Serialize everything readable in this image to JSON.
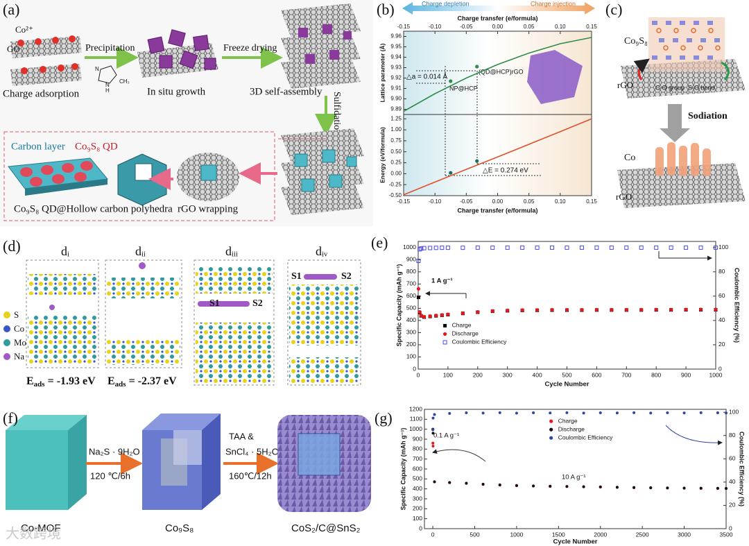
{
  "panels": {
    "a": {
      "label": "(a)",
      "ion": "Co²⁺",
      "go": "GO",
      "step1": "Charge adsorption",
      "arrow1": "Precipitation",
      "step2": "In situ growth",
      "arrow2": "Freeze drying",
      "step3": "3D self-assembly",
      "arrow3": "Sulfidation",
      "carbon_layer": "Carbon layer",
      "qd": "Co₉S₈ QD",
      "final": "Co₉S₈ QD@Hollow carbon polyhedra",
      "arrow4": "rGO wrapping",
      "imidazole": [
        "N",
        "N",
        "H",
        "CH₃"
      ]
    },
    "b": {
      "label": "(b)",
      "depletion": "Charge depletion",
      "injection": "Charge injection",
      "delta_a": "△a = 0.014 Å",
      "np": "NP@HCP",
      "qd": "(QD@HCP)rGO",
      "delta_e": "△E = 0.274 eV"
    },
    "c": {
      "label": "(c)",
      "top": "Co₉S₈",
      "rgo": "rGO",
      "co_group": "C-O group",
      "so_bond": "S-O bond",
      "arrow": "Sodiation",
      "bottom": "Co",
      "rgo2": "rGO"
    },
    "d": {
      "label": "(d)",
      "sub": [
        "dᵢ",
        "dᵢᵢ",
        "dᵢᵢᵢ",
        "dᵢᵥ"
      ],
      "legend": [
        "S",
        "Co",
        "Mo",
        "Na"
      ],
      "eads_symbol": "E",
      "eads_sub": "ads",
      "energies": [
        "= -1.93 eV",
        "= -2.37 eV"
      ],
      "sites": [
        "S1",
        "S2"
      ]
    },
    "e": {
      "label": "(e)"
    },
    "f": {
      "label": "(f)",
      "start": "Co-MOF",
      "reagent1": "Na₂S · 9H₂O",
      "cond1": "120 ℃/6h",
      "reagent2a": "TAA &",
      "reagent2b": "SnCl₄ · 5H₂O",
      "cond2": "160℃/12h",
      "mid": "Co₉S₈",
      "end": "CoS₂/C@SnS₂"
    },
    "g": {
      "label": "(g)"
    },
    "watermark": "大数跨境"
  },
  "chart_data": [
    {
      "type": "line",
      "xlabel": "Charge transfer (e/formula)",
      "ylabel": "Lattice parameter (Å)",
      "x": [
        -0.15,
        -0.1,
        -0.05,
        0,
        0.05,
        0.1,
        0.15
      ],
      "xlim": [
        -0.15,
        0.15
      ],
      "xticks": [
        {
          "value": -0.15,
          "label": "-0.15"
        },
        {
          "value": -0.1,
          "label": "-0.10"
        },
        {
          "value": -0.05,
          "label": "-0.05"
        },
        {
          "value": 0,
          "label": "0.00"
        },
        {
          "value": 0.05,
          "label": "0.05"
        },
        {
          "value": 0.1,
          "label": "0.10"
        },
        {
          "value": 0.15,
          "label": "0.15"
        }
      ],
      "ylim": [
        9.885,
        9.965
      ],
      "yticks": [
        9.89,
        {
          "value": 9.9,
          "label": "9.90"
        },
        9.91,
        9.92,
        9.93,
        9.94,
        9.95,
        9.96
      ],
      "series": [
        {
          "color": "#2e8b4a",
          "mode": "line",
          "values": [
            9.888,
            9.905,
            9.92,
            9.933,
            9.944,
            9.953,
            9.959
          ]
        },
        {
          "color": "#2e8b4a",
          "mode": "circle",
          "x": [
            -0.075,
            -0.033
          ],
          "values": [
            9.917,
            9.931
          ]
        }
      ]
    },
    {
      "type": "line",
      "xlabel": "Charge transfer (e/formula)",
      "ylabel": "Energy (eV/formula)",
      "x": [
        -0.15,
        -0.1,
        -0.05,
        0,
        0.05,
        0.1,
        0.15
      ],
      "xlim": [
        -0.15,
        0.15
      ],
      "xticks": [
        {
          "value": -0.15,
          "label": "-0.15"
        },
        {
          "value": -0.1,
          "label": "-0.10"
        },
        {
          "value": -0.05,
          "label": "-0.05"
        },
        {
          "value": 0,
          "label": "0.00"
        },
        {
          "value": 0.05,
          "label": "0.05"
        },
        {
          "value": 0.1,
          "label": "0.10"
        },
        {
          "value": 0.15,
          "label": "0.15"
        }
      ],
      "ylim": [
        -0.5,
        1.35
      ],
      "yticks": [
        {
          "value": -0.5,
          "label": "-0.50"
        },
        -0.25,
        {
          "value": 0,
          "label": "0.00"
        },
        0.25,
        {
          "value": 0.5,
          "label": "0.50"
        },
        0.75,
        {
          "value": 1,
          "label": "1.00"
        },
        1.25
      ],
      "series": [
        {
          "color": "#e0502a",
          "mode": "line",
          "values": [
            -0.48,
            -0.19,
            0.1,
            0.38,
            0.67,
            0.96,
            1.25
          ]
        },
        {
          "color": "#1f6e5a",
          "mode": "circle",
          "x": [
            -0.075,
            -0.033
          ],
          "values": [
            0.02,
            0.29
          ]
        }
      ]
    },
    {
      "type": "scatter",
      "xlabel": "Cycle Number",
      "ylabel": "Specific Capacity   (mAh g⁻¹)",
      "y2label": "Coulombic Efficiency (%)",
      "annotations": [
        "1 A g⁻¹"
      ],
      "legend": "center-left",
      "x": [
        1,
        5,
        10,
        20,
        40,
        60,
        80,
        100,
        150,
        200,
        250,
        300,
        350,
        400,
        450,
        500,
        550,
        600,
        650,
        700,
        750,
        800,
        850,
        900,
        950,
        1000
      ],
      "xlim": [
        0,
        1000
      ],
      "xticks": [
        0,
        100,
        200,
        300,
        400,
        500,
        600,
        700,
        800,
        900,
        1000
      ],
      "ylim": [
        0,
        1050
      ],
      "yticks": [
        0,
        100,
        200,
        300,
        400,
        500,
        600,
        700,
        800,
        900,
        1000
      ],
      "y2lim": [
        0,
        105
      ],
      "y2ticks": [
        0,
        20,
        40,
        60,
        80,
        100
      ],
      "series": [
        {
          "name": "Charge",
          "color": "#000000",
          "mode": "square",
          "values": [
            590,
            465,
            438,
            428,
            433,
            438,
            443,
            448,
            458,
            468,
            476,
            480,
            483,
            484,
            485,
            485,
            485,
            486,
            486,
            486,
            486,
            487,
            487,
            488,
            488,
            488
          ]
        },
        {
          "name": "Discharge",
          "color": "#e8161b",
          "mode": "circle",
          "values": [
            660,
            470,
            440,
            430,
            435,
            440,
            445,
            450,
            460,
            470,
            478,
            482,
            485,
            486,
            487,
            487,
            487,
            488,
            488,
            488,
            488,
            489,
            489,
            490,
            490,
            490
          ]
        },
        {
          "name": "Coulombic Efficiency",
          "color": "#4a4ae8",
          "mode": "open-square",
          "axis": "y2",
          "values": [
            89,
            98.5,
            99.2,
            99.5,
            99.6,
            99.7,
            99.8,
            99.8,
            99.8,
            99.9,
            99.9,
            99.9,
            99.9,
            99.9,
            99.9,
            99.9,
            99.9,
            99.9,
            99.9,
            99.9,
            99.9,
            99.9,
            99.9,
            99.9,
            99.9,
            99.9
          ]
        }
      ]
    },
    {
      "type": "scatter",
      "xlabel": "Cycle Number",
      "ylabel": "Specific Capacity (mAh g⁻¹)",
      "y2label": "Coulombic Efficiency (%)",
      "annotations": [
        "0.1 A g⁻¹",
        "10 A g⁻¹"
      ],
      "legend": "upper-center",
      "x": [
        1,
        3,
        20,
        200,
        400,
        600,
        800,
        1000,
        1200,
        1400,
        1600,
        1800,
        2000,
        2200,
        2400,
        2600,
        2800,
        3000,
        3200,
        3400,
        3500
      ],
      "xlim": [
        -100,
        3500
      ],
      "xticks": [
        0,
        500,
        1000,
        1500,
        2000,
        2500,
        3000,
        3500
      ],
      "ylim": [
        0,
        1200
      ],
      "yticks": [
        0,
        100,
        200,
        300,
        400,
        500,
        600,
        700,
        800,
        900,
        1000,
        1100,
        1200
      ],
      "y2lim": [
        0,
        102.5
      ],
      "y2ticks": [
        0,
        20,
        40,
        60,
        80,
        100
      ],
      "series": [
        {
          "name": "Charge",
          "color": "#e8161b",
          "mode": "circle",
          "values": [
            860,
            830,
            470,
            462,
            455,
            445,
            438,
            432,
            428,
            425,
            423,
            420,
            418,
            415,
            412,
            410,
            408,
            406,
            405,
            404,
            404
          ]
        },
        {
          "name": "Discharge",
          "color": "#111111",
          "mode": "circle",
          "values": [
            1000,
            960,
            472,
            464,
            457,
            447,
            440,
            434,
            430,
            427,
            425,
            422,
            420,
            417,
            414,
            412,
            410,
            408,
            407,
            406,
            405
          ]
        },
        {
          "name": "Coulombic Efficiency",
          "color": "#2f44a8",
          "mode": "circle",
          "axis": "y2",
          "values": [
            85,
            95,
            98,
            99,
            99.5,
            99.3,
            99.6,
            99.2,
            99.5,
            99.4,
            99.6,
            99.3,
            99.5,
            99.4,
            99.6,
            99.3,
            99.5,
            99.4,
            99.6,
            99.5,
            99.4
          ]
        }
      ]
    }
  ]
}
